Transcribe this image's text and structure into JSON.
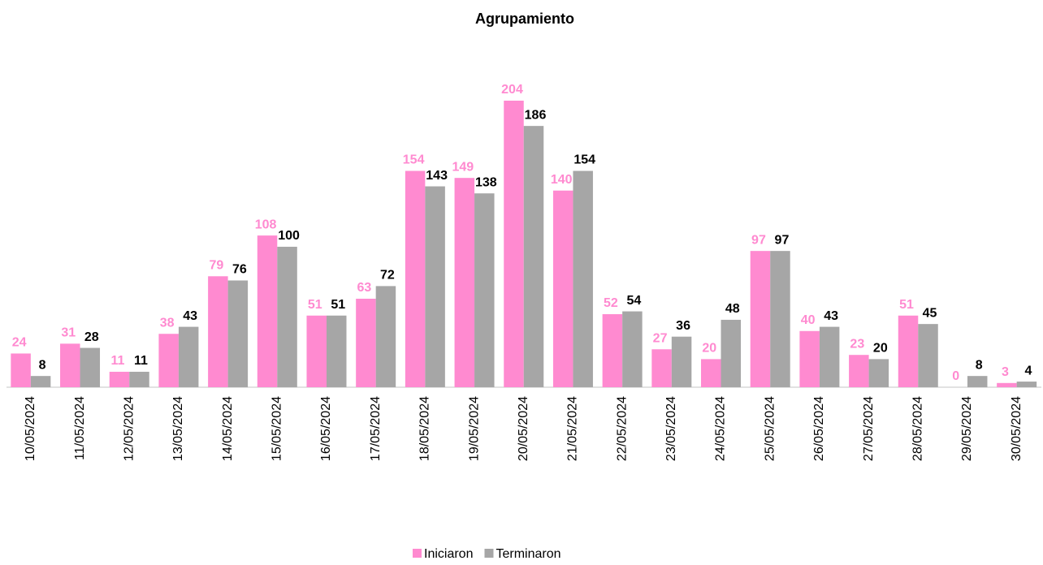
{
  "chart_data": {
    "type": "bar",
    "title": "Agrupamiento",
    "categories": [
      "10/05/2024",
      "11/05/2024",
      "12/05/2024",
      "13/05/2024",
      "14/05/2024",
      "15/05/2024",
      "16/05/2024",
      "17/05/2024",
      "18/05/2024",
      "19/05/2024",
      "20/05/2024",
      "21/05/2024",
      "22/05/2024",
      "23/05/2024",
      "24/05/2024",
      "25/05/2024",
      "26/05/2024",
      "27/05/2024",
      "28/05/2024",
      "29/05/2024",
      "30/05/2024"
    ],
    "series": [
      {
        "name": "Iniciaron",
        "color": "#ff8ad0",
        "values": [
          24,
          31,
          11,
          38,
          79,
          108,
          51,
          63,
          154,
          149,
          204,
          140,
          52,
          27,
          20,
          97,
          40,
          23,
          51,
          0,
          3
        ]
      },
      {
        "name": "Terminaron",
        "color": "#a6a6a6",
        "values": [
          8,
          28,
          11,
          43,
          76,
          100,
          51,
          72,
          143,
          138,
          186,
          154,
          54,
          36,
          48,
          97,
          43,
          20,
          45,
          8,
          4
        ]
      }
    ],
    "legend": "bottom"
  }
}
